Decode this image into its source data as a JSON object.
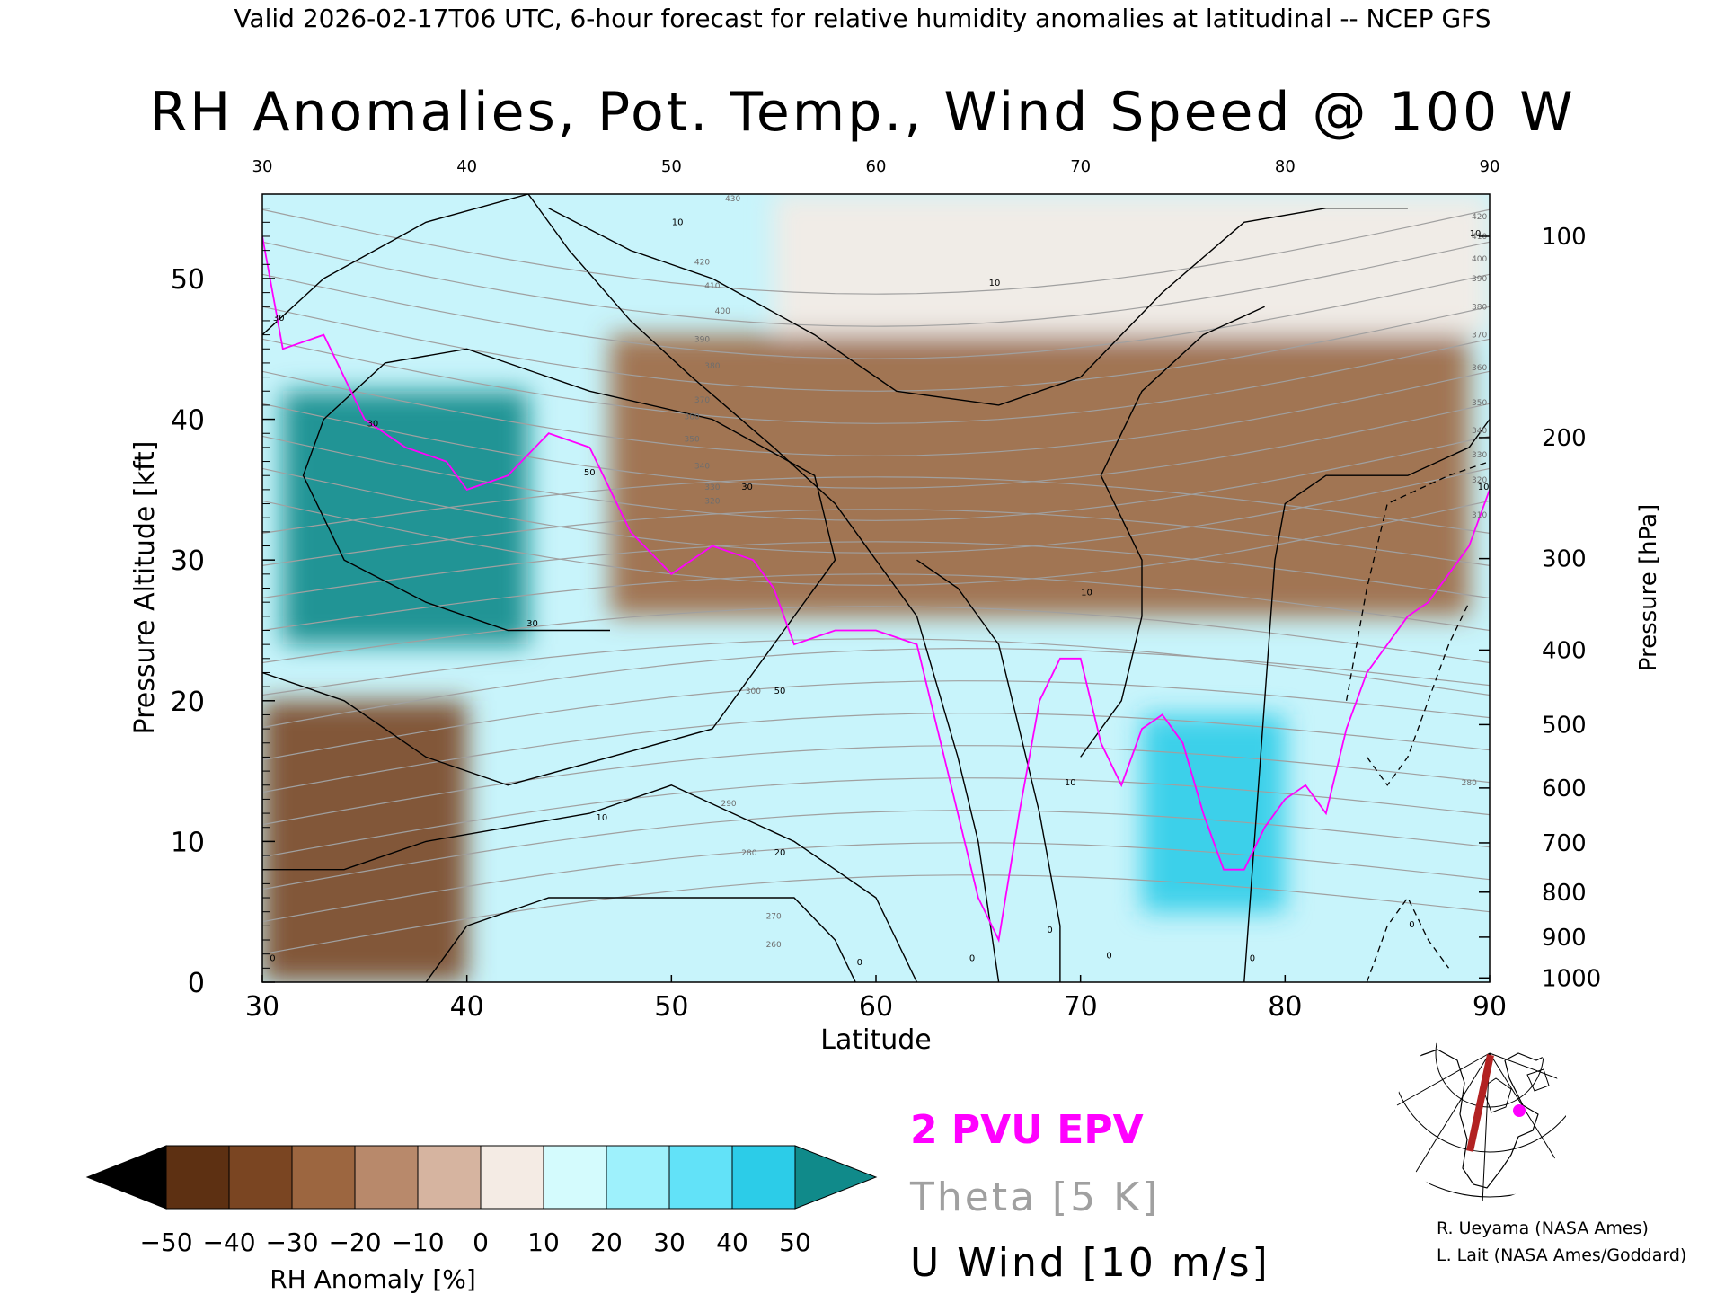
{
  "header": {
    "valid_line": "Valid 2026-02-17T06 UTC, 6-hour forecast for relative humidity anomalies at latitudinal -- NCEP GFS",
    "title": "RH Anomalies, Pot. Temp., Wind Speed @ 100 W"
  },
  "chart_data": {
    "type": "heatmap",
    "title": "RH Anomalies, Pot. Temp., Wind Speed @ 100 W",
    "xlabel": "Latitude",
    "ylabel": "Pressure Altitude [kft]",
    "y2label": "Pressure [hPa]",
    "xlim": [
      30,
      90
    ],
    "ylim": [
      0,
      56
    ],
    "x_ticks": [
      30,
      40,
      50,
      60,
      70,
      80,
      90
    ],
    "x_top_ticks": [
      "30",
      "40",
      "50",
      "60",
      "70",
      "80",
      "90"
    ],
    "y_ticks": [
      0,
      10,
      20,
      30,
      40,
      50
    ],
    "pressure_ticks": [
      {
        "label": "100",
        "kft": 53.0
      },
      {
        "label": "200",
        "kft": 38.7
      },
      {
        "label": "300",
        "kft": 30.1
      },
      {
        "label": "400",
        "kft": 23.6
      },
      {
        "label": "500",
        "kft": 18.3
      },
      {
        "label": "600",
        "kft": 13.8
      },
      {
        "label": "700",
        "kft": 9.9
      },
      {
        "label": "800",
        "kft": 6.4
      },
      {
        "label": "900",
        "kft": 3.2
      },
      {
        "label": "1000",
        "kft": 0.3
      }
    ],
    "theta_labels": [
      {
        "value": "430",
        "lat": 53.0,
        "kft": 55.5
      },
      {
        "value": "420",
        "lat": 51.5,
        "kft": 51.0
      },
      {
        "value": "410",
        "lat": 52.0,
        "kft": 49.3
      },
      {
        "value": "400",
        "lat": 52.5,
        "kft": 47.5
      },
      {
        "value": "390",
        "lat": 51.5,
        "kft": 45.5
      },
      {
        "value": "380",
        "lat": 52.0,
        "kft": 43.6
      },
      {
        "value": "370",
        "lat": 51.5,
        "kft": 41.2
      },
      {
        "value": "360",
        "lat": 51.0,
        "kft": 40.0
      },
      {
        "value": "350",
        "lat": 51.0,
        "kft": 38.4
      },
      {
        "value": "340",
        "lat": 51.5,
        "kft": 36.5
      },
      {
        "value": "330",
        "lat": 52.0,
        "kft": 35.0
      },
      {
        "value": "320",
        "lat": 52.0,
        "kft": 34.0
      },
      {
        "value": "300",
        "lat": 54.0,
        "kft": 20.5
      },
      {
        "value": "290",
        "lat": 52.8,
        "kft": 12.5
      },
      {
        "value": "280",
        "lat": 53.8,
        "kft": 9.0
      },
      {
        "value": "270",
        "lat": 55.0,
        "kft": 4.5
      },
      {
        "value": "260",
        "lat": 55.0,
        "kft": 2.5
      },
      {
        "value": "420",
        "lat": 89.5,
        "kft": 54.2
      },
      {
        "value": "410",
        "lat": 89.5,
        "kft": 52.8
      },
      {
        "value": "400",
        "lat": 89.5,
        "kft": 51.2
      },
      {
        "value": "390",
        "lat": 89.5,
        "kft": 49.8
      },
      {
        "value": "380",
        "lat": 89.5,
        "kft": 47.8
      },
      {
        "value": "370",
        "lat": 89.5,
        "kft": 45.8
      },
      {
        "value": "360",
        "lat": 89.5,
        "kft": 43.5
      },
      {
        "value": "350",
        "lat": 89.5,
        "kft": 41.0
      },
      {
        "value": "340",
        "lat": 89.5,
        "kft": 39.0
      },
      {
        "value": "330",
        "lat": 89.5,
        "kft": 37.3
      },
      {
        "value": "320",
        "lat": 89.5,
        "kft": 35.5
      },
      {
        "value": "310",
        "lat": 89.5,
        "kft": 33.0
      },
      {
        "value": "280",
        "lat": 89.0,
        "kft": 14.0
      }
    ],
    "wind_labels": [
      {
        "value": "30",
        "lat": 30.8,
        "kft": 47.0
      },
      {
        "value": "30",
        "lat": 35.4,
        "kft": 39.5
      },
      {
        "value": "30",
        "lat": 43.2,
        "kft": 25.3
      },
      {
        "value": "30",
        "lat": 53.7,
        "kft": 35.0
      },
      {
        "value": "10",
        "lat": 50.3,
        "kft": 53.8
      },
      {
        "value": "10",
        "lat": 65.8,
        "kft": 49.5
      },
      {
        "value": "10",
        "lat": 70.3,
        "kft": 27.5
      },
      {
        "value": "10",
        "lat": 69.5,
        "kft": 14.0
      },
      {
        "value": "10",
        "lat": 89.3,
        "kft": 53.0
      },
      {
        "value": "10",
        "lat": 46.6,
        "kft": 11.5
      },
      {
        "value": "10",
        "lat": 89.7,
        "kft": 35.0
      },
      {
        "value": "50",
        "lat": 46.0,
        "kft": 36.0
      },
      {
        "value": "50",
        "lat": 55.3,
        "kft": 20.5
      },
      {
        "value": "20",
        "lat": 55.3,
        "kft": 9.0
      },
      {
        "value": "0",
        "lat": 30.5,
        "kft": 1.5
      },
      {
        "value": "0",
        "lat": 59.2,
        "kft": 1.2
      },
      {
        "value": "0",
        "lat": 64.7,
        "kft": 1.5
      },
      {
        "value": "0",
        "lat": 68.5,
        "kft": 3.5
      },
      {
        "value": "0",
        "lat": 71.4,
        "kft": 1.7
      },
      {
        "value": "0",
        "lat": 78.4,
        "kft": 1.5
      },
      {
        "value": "0",
        "lat": 86.2,
        "kft": 3.9
      }
    ],
    "shading_bands": [
      {
        "lat0": 30,
        "lat1": 40,
        "kft0": 0,
        "kft1": 20,
        "anomaly": -40
      },
      {
        "lat0": 31,
        "lat1": 43,
        "kft0": 24,
        "kft1": 42,
        "anomaly": 50
      },
      {
        "lat0": 47,
        "lat1": 89,
        "kft0": 26,
        "kft1": 46,
        "anomaly": -30
      },
      {
        "lat0": 73,
        "lat1": 80,
        "kft0": 5,
        "kft1": 19,
        "anomaly": 40
      },
      {
        "lat0": 55,
        "lat1": 90,
        "kft0": 46,
        "kft1": 56,
        "anomaly": 0
      }
    ]
  },
  "colorbar": {
    "label": "RH Anomaly [%]",
    "tick_labels": [
      "−50",
      "−40",
      "−30",
      "−20",
      "−10",
      "0",
      "10",
      "20",
      "30",
      "40",
      "50"
    ],
    "colors": [
      "#5d3012",
      "#7a4522",
      "#9c6640",
      "#b8896b",
      "#d6b4a0",
      "#f4ebe4",
      "#d4fbfd",
      "#9ef1fc",
      "#62e2f8",
      "#2ccce8",
      "#0f9fc2"
    ],
    "under_color": "#000000",
    "over_color": "#108a8a"
  },
  "legend": {
    "epv_label": "2 PVU EPV",
    "theta_label": "Theta [5 K]",
    "uwind_label": "U Wind [10 m/s]",
    "epv_color": "#ff00ff",
    "theta_color": "#a0a0a0",
    "uwind_color": "#000000"
  },
  "credits": {
    "line1": "R. Ueyama (NASA Ames)",
    "line2": "L. Lait (NASA Ames/Goddard)"
  },
  "locator_map": {
    "marker_color": "#ff00ff",
    "transect_color": "#b22222"
  }
}
